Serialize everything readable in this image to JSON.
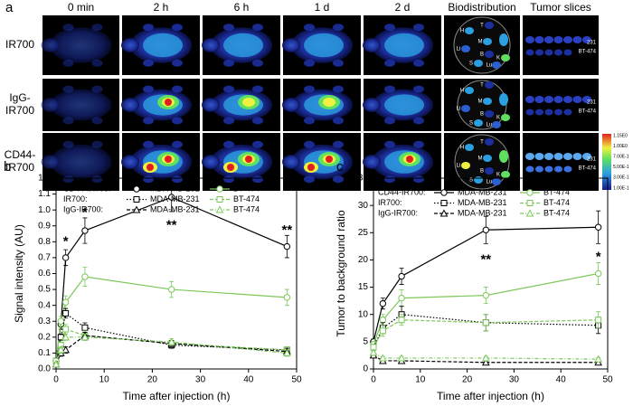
{
  "panel_a": {
    "label": "a",
    "columns": [
      "0 min",
      "2 h",
      "6 h",
      "1 d",
      "2 d",
      "Biodistribution",
      "Tumor slices"
    ],
    "rows": [
      [
        "IR700"
      ],
      [
        "IgG-",
        "IR700"
      ],
      [
        "CD44-",
        "IR700"
      ]
    ],
    "organs": [
      "H",
      "T",
      "Li",
      "M",
      "K",
      "S",
      "B",
      "Lu"
    ],
    "slices": [
      "231",
      "BT-474"
    ],
    "colorbar": [
      "1.15E0",
      "1.00E0",
      "7.00E-1",
      "5.00E-1",
      "3.00E-1",
      "1.00E-1"
    ]
  },
  "chart_data": [
    {
      "type": "line",
      "panel": "b",
      "xlabel": "Time after injection (h)",
      "ylabel": "Signal intensity (AU)",
      "x": [
        0,
        1,
        2,
        6,
        24,
        48
      ],
      "xlim": [
        0,
        50
      ],
      "xticks": [
        0,
        10,
        20,
        30,
        40,
        50
      ],
      "ylim": [
        0,
        1.2
      ],
      "yticks": [
        {
          "value": 0,
          "label": "0.0"
        },
        0.1,
        0.2,
        0.3,
        0.4,
        0.5,
        0.6,
        0.7,
        0.8,
        0.9,
        {
          "value": 1,
          "label": "1.0"
        },
        1.1,
        1.2
      ],
      "legend_groups": [
        "CD44-IR700:",
        "IR700:",
        "IgG-IR700:"
      ],
      "series": [
        {
          "name": "MDA-MB-231",
          "color": "#000000",
          "dash": "solid",
          "marker": "circle",
          "values": [
            0.05,
            0.28,
            0.7,
            0.87,
            1.08,
            0.77
          ],
          "errors": [
            0.01,
            0.03,
            0.05,
            0.08,
            0.09,
            0.07
          ]
        },
        {
          "name": "BT-474",
          "color": "#7cc85a",
          "dash": "solid",
          "marker": "circle",
          "values": [
            0.05,
            0.3,
            0.42,
            0.58,
            0.5,
            0.45
          ],
          "errors": [
            0.01,
            0.03,
            0.04,
            0.06,
            0.05,
            0.05
          ]
        },
        {
          "name": "MDA-MB-231",
          "color": "#000000",
          "dash": "dotted",
          "marker": "square",
          "values": [
            0.05,
            0.2,
            0.35,
            0.26,
            0.15,
            0.12
          ],
          "errors": [
            0.01,
            0.02,
            0.03,
            0.03,
            0.02,
            0.02
          ]
        },
        {
          "name": "BT-474",
          "color": "#7cc85a",
          "dash": "dashed",
          "marker": "square",
          "values": [
            0.05,
            0.15,
            0.25,
            0.21,
            0.16,
            0.12
          ],
          "errors": [
            0.01,
            0.02,
            0.03,
            0.03,
            0.02,
            0.02
          ]
        },
        {
          "name": "MDA-MB-231",
          "color": "#000000",
          "dash": "dashed",
          "marker": "triangle",
          "values": [
            0.03,
            0.1,
            0.12,
            0.21,
            0.16,
            0.11
          ],
          "errors": [
            0.01,
            0.02,
            0.02,
            0.02,
            0.02,
            0.02
          ]
        },
        {
          "name": "BT-474",
          "color": "#7cc85a",
          "dash": "dashdot",
          "marker": "triangle",
          "values": [
            0.03,
            0.12,
            0.2,
            0.2,
            0.17,
            0.1
          ],
          "errors": [
            0.01,
            0.02,
            0.02,
            0.02,
            0.02,
            0.02
          ]
        }
      ],
      "annotations": [
        {
          "text": "*",
          "x": 2,
          "y": 0.8
        },
        {
          "text": "*",
          "x": 6,
          "y": 0.98
        },
        {
          "text": "**",
          "x": 24,
          "y": 0.9
        },
        {
          "text": "**",
          "x": 48,
          "y": 0.87
        }
      ]
    },
    {
      "type": "line",
      "panel": "c",
      "xlabel": "Time after injection (h)",
      "ylabel": "Tumor to background ratio",
      "x": [
        0,
        2,
        6,
        24,
        48
      ],
      "xlim": [
        0,
        50
      ],
      "xticks": [
        0,
        10,
        20,
        30,
        40,
        50
      ],
      "ylim": [
        0,
        35
      ],
      "yticks": [
        0,
        5,
        10,
        15,
        20,
        25,
        30,
        35
      ],
      "legend_groups": [
        "CD44-IR700:",
        "IR700:",
        "IgG-IR700:"
      ],
      "series": [
        {
          "name": "MDA-MB-231",
          "color": "#000000",
          "dash": "solid",
          "marker": "circle",
          "values": [
            5,
            12,
            17,
            25.5,
            26
          ],
          "errors": [
            0.5,
            1,
            1.5,
            2.5,
            3
          ]
        },
        {
          "name": "BT-474",
          "color": "#7cc85a",
          "dash": "solid",
          "marker": "circle",
          "values": [
            4.5,
            9,
            13,
            13.5,
            17.5
          ],
          "errors": [
            0.5,
            1,
            1.5,
            1.5,
            2
          ]
        },
        {
          "name": "MDA-MB-231",
          "color": "#000000",
          "dash": "dotted",
          "marker": "square",
          "values": [
            4,
            7.5,
            10,
            8.5,
            8
          ],
          "errors": [
            0.5,
            1,
            1.5,
            1.5,
            1.5
          ]
        },
        {
          "name": "BT-474",
          "color": "#7cc85a",
          "dash": "dashed",
          "marker": "square",
          "values": [
            4,
            7,
            9,
            8.5,
            9
          ],
          "errors": [
            0.5,
            1,
            1,
            1.5,
            1.5
          ]
        },
        {
          "name": "MDA-MB-231",
          "color": "#000000",
          "dash": "dashed",
          "marker": "triangle",
          "values": [
            2.5,
            1.5,
            1.5,
            1.2,
            1.2
          ],
          "errors": [
            0.3,
            0.3,
            0.3,
            0.3,
            0.3
          ]
        },
        {
          "name": "BT-474",
          "color": "#7cc85a",
          "dash": "dashdot",
          "marker": "triangle",
          "values": [
            3,
            2,
            2,
            2,
            1.8
          ],
          "errors": [
            0.3,
            0.3,
            0.3,
            0.3,
            0.3
          ]
        }
      ],
      "annotations": [
        {
          "text": "**",
          "x": 24,
          "y": 20
        },
        {
          "text": "*",
          "x": 48,
          "y": 20.5
        }
      ]
    }
  ]
}
